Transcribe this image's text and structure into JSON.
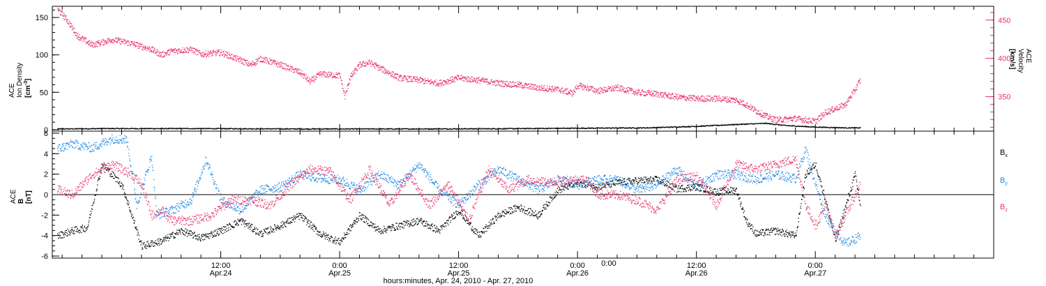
{
  "chart_data": {
    "type": "scatter",
    "x_axis": {
      "label": "hours:minutes, Apr. 24, 2010 - Apr. 27, 2010",
      "range_hours": [
        -5,
        90
      ],
      "ticks": [
        {
          "hour": 12,
          "time": "12:00",
          "date": "Apr.24"
        },
        {
          "hour": 24,
          "time": "0:00",
          "date": "Apr.25"
        },
        {
          "hour": 36,
          "time": "12:00",
          "date": "Apr.25"
        },
        {
          "hour": 48,
          "time": "0:00",
          "date": "Apr.26"
        },
        {
          "hour": 60,
          "time": "12:00",
          "date": "Apr.26"
        },
        {
          "hour": 72,
          "time": "0:00",
          "date": "Apr.27"
        }
      ]
    },
    "panels": [
      {
        "id": "top",
        "ylabel_lines": [
          "ACE",
          "Ion Density"
        ],
        "yunit_pre": "[cm",
        "yunit_sup": "-3",
        "yunit_post": "]",
        "ylim": [
          -2,
          165
        ],
        "yticks": [
          0,
          50,
          100,
          150
        ],
        "y2label_lines": [
          "ACE",
          "Velocity"
        ],
        "y2unit": "[km/s]",
        "y2lim": [
          305,
          468
        ],
        "y2ticks": [
          350,
          400,
          450
        ],
        "series": [
          {
            "axis": "left",
            "color": "#000000",
            "keypoints": [
              [
                -4.5,
                1.5
              ],
              [
                0,
                2
              ],
              [
                10,
                2
              ],
              [
                20,
                1.5
              ],
              [
                30,
                1.5
              ],
              [
                40,
                1.8
              ],
              [
                48,
                2.5
              ],
              [
                55,
                3
              ],
              [
                60,
                5
              ],
              [
                64,
                7.5
              ],
              [
                67,
                9
              ],
              [
                69,
                6
              ],
              [
                72,
                4
              ],
              [
                75,
                3
              ],
              [
                76.5,
                3
              ]
            ]
          },
          {
            "axis": "right",
            "color": "#e8336a",
            "keypoints": [
              [
                -4.5,
                465
              ],
              [
                -3.5,
                450
              ],
              [
                -2.5,
                430
              ],
              [
                -1,
                418
              ],
              [
                1,
                425
              ],
              [
                3,
                420
              ],
              [
                5,
                412
              ],
              [
                6,
                405
              ],
              [
                7,
                410
              ],
              [
                9,
                412
              ],
              [
                10,
                406
              ],
              [
                12,
                408
              ],
              [
                14,
                398
              ],
              [
                15,
                392
              ],
              [
                16,
                400
              ],
              [
                18,
                392
              ],
              [
                20,
                382
              ],
              [
                21,
                370
              ],
              [
                22,
                380
              ],
              [
                24,
                378
              ],
              [
                24.5,
                350
              ],
              [
                25,
                375
              ],
              [
                26,
                392
              ],
              [
                27,
                395
              ],
              [
                28,
                388
              ],
              [
                30,
                375
              ],
              [
                32,
                372
              ],
              [
                34,
                368
              ],
              [
                36,
                375
              ],
              [
                38,
                372
              ],
              [
                40,
                368
              ],
              [
                42,
                366
              ],
              [
                44,
                362
              ],
              [
                46,
                360
              ],
              [
                47.5,
                355
              ],
              [
                48,
                365
              ],
              [
                49,
                362
              ],
              [
                50,
                358
              ],
              [
                52,
                362
              ],
              [
                54,
                356
              ],
              [
                56,
                354
              ],
              [
                58,
                350
              ],
              [
                60,
                348
              ],
              [
                62,
                348
              ],
              [
                64,
                346
              ],
              [
                65,
                340
              ],
              [
                66,
                332
              ],
              [
                67,
                325
              ],
              [
                68,
                320
              ],
              [
                70,
                322
              ],
              [
                72,
                318
              ],
              [
                73,
                330
              ],
              [
                75,
                340
              ],
              [
                76,
                360
              ],
              [
                76.5,
                372
              ]
            ]
          }
        ]
      },
      {
        "id": "bottom",
        "ylabel_lines": [
          "ACE"
        ],
        "yvar": "B",
        "yunit": "[nT]",
        "ylim": [
          -6.2,
          6.2
        ],
        "yticks": [
          -6,
          -4,
          -2,
          0,
          2,
          4,
          6
        ],
        "series": [
          {
            "name_base": "B",
            "name_sub": "x",
            "color": "#000000",
            "keypoints": [
              [
                -4.5,
                -4
              ],
              [
                -3,
                -3.5
              ],
              [
                -1.5,
                -3.2
              ],
              [
                0,
                3
              ],
              [
                2,
                1
              ],
              [
                4,
                -5
              ],
              [
                6,
                -4.5
              ],
              [
                8,
                -3.5
              ],
              [
                10,
                -4.2
              ],
              [
                12,
                -3.5
              ],
              [
                14,
                -2.5
              ],
              [
                16,
                -3.8
              ],
              [
                18,
                -3
              ],
              [
                20,
                -2
              ],
              [
                22,
                -3.8
              ],
              [
                24,
                -4.6
              ],
              [
                26,
                -2
              ],
              [
                28,
                -3.5
              ],
              [
                30,
                -3
              ],
              [
                32,
                -2.5
              ],
              [
                34,
                -3.5
              ],
              [
                36,
                -1.5
              ],
              [
                38,
                -4
              ],
              [
                40,
                -2
              ],
              [
                42,
                -1.2
              ],
              [
                44,
                -2
              ],
              [
                46,
                0.5
              ],
              [
                48,
                1.2
              ],
              [
                50,
                0.8
              ],
              [
                52,
                1.2
              ],
              [
                54,
                1.4
              ],
              [
                56,
                1.5
              ],
              [
                58,
                0.6
              ],
              [
                60,
                0.8
              ],
              [
                62,
                0.3
              ],
              [
                64,
                0.5
              ],
              [
                65,
                -2.5
              ],
              [
                66,
                -3.8
              ],
              [
                68,
                -3.5
              ],
              [
                70,
                -4
              ],
              [
                71,
                2
              ],
              [
                72,
                3
              ],
              [
                73,
                -0.5
              ],
              [
                74,
                -4.5
              ],
              [
                76,
                2
              ],
              [
                76.5,
                -1
              ]
            ]
          },
          {
            "name_base": "B",
            "name_sub": "y",
            "color": "#1a87e3",
            "keypoints": [
              [
                -4.5,
                4.5
              ],
              [
                -3,
                5
              ],
              [
                -1,
                4.6
              ],
              [
                1,
                5.5
              ],
              [
                2.5,
                5.4
              ],
              [
                3.5,
                -1
              ],
              [
                5,
                3.8
              ],
              [
                5.5,
                -2
              ],
              [
                7,
                -1.5
              ],
              [
                9,
                -0.5
              ],
              [
                10.5,
                3.5
              ],
              [
                12,
                -0.5
              ],
              [
                14,
                -1.5
              ],
              [
                16,
                0.5
              ],
              [
                18,
                0.8
              ],
              [
                20,
                2
              ],
              [
                22,
                1.6
              ],
              [
                24,
                1.5
              ],
              [
                26,
                0.5
              ],
              [
                28,
                2
              ],
              [
                30,
                1
              ],
              [
                32,
                3
              ],
              [
                34,
                0.5
              ],
              [
                36,
                -1
              ],
              [
                38,
                1
              ],
              [
                40,
                2.5
              ],
              [
                42,
                1.5
              ],
              [
                44,
                0.5
              ],
              [
                46,
                1.5
              ],
              [
                48,
                1
              ],
              [
                50,
                1.5
              ],
              [
                52,
                1.5
              ],
              [
                54,
                0.5
              ],
              [
                56,
                1
              ],
              [
                58,
                2.5
              ],
              [
                60,
                0.8
              ],
              [
                62,
                2
              ],
              [
                64,
                2
              ],
              [
                66,
                1.5
              ],
              [
                68,
                2
              ],
              [
                70,
                1.6
              ],
              [
                71,
                4.5
              ],
              [
                72,
                1
              ],
              [
                73,
                -2
              ],
              [
                74,
                -3.5
              ],
              [
                75,
                -4.8
              ],
              [
                76.5,
                -4
              ]
            ]
          },
          {
            "name_base": "B",
            "name_sub": "z",
            "color": "#e8336a",
            "keypoints": [
              [
                -4.5,
                0.5
              ],
              [
                -3,
                0
              ],
              [
                -1,
                2
              ],
              [
                1,
                3
              ],
              [
                3,
                2
              ],
              [
                4,
                1
              ],
              [
                5,
                -2
              ],
              [
                6,
                -1.5
              ],
              [
                7,
                -2.5
              ],
              [
                9,
                -2.5
              ],
              [
                11,
                -2
              ],
              [
                13,
                -0.5
              ],
              [
                15,
                -0.5
              ],
              [
                17,
                -1
              ],
              [
                19,
                1
              ],
              [
                21,
                2.5
              ],
              [
                23,
                2.3
              ],
              [
                25,
                -0.5
              ],
              [
                27,
                2.5
              ],
              [
                29,
                -1
              ],
              [
                31,
                2
              ],
              [
                33,
                -1
              ],
              [
                35,
                1
              ],
              [
                37,
                -2.5
              ],
              [
                39,
                2.5
              ],
              [
                41,
                0.5
              ],
              [
                43,
                1.5
              ],
              [
                45,
                1.2
              ],
              [
                47,
                1.5
              ],
              [
                49,
                1.5
              ],
              [
                50,
                0
              ],
              [
                52,
                0
              ],
              [
                54,
                -0.5
              ],
              [
                56,
                -1.5
              ],
              [
                58,
                1.5
              ],
              [
                60,
                1.8
              ],
              [
                62,
                -1
              ],
              [
                64,
                3
              ],
              [
                66,
                2.5
              ],
              [
                68,
                3
              ],
              [
                70,
                3.5
              ],
              [
                71,
                -1
              ],
              [
                72,
                -3
              ],
              [
                73,
                -1
              ],
              [
                74,
                -4
              ],
              [
                75,
                -2
              ],
              [
                76.5,
                1
              ]
            ]
          }
        ]
      }
    ],
    "annotations": [
      {
        "hour": 48,
        "label": "0:00"
      }
    ]
  }
}
